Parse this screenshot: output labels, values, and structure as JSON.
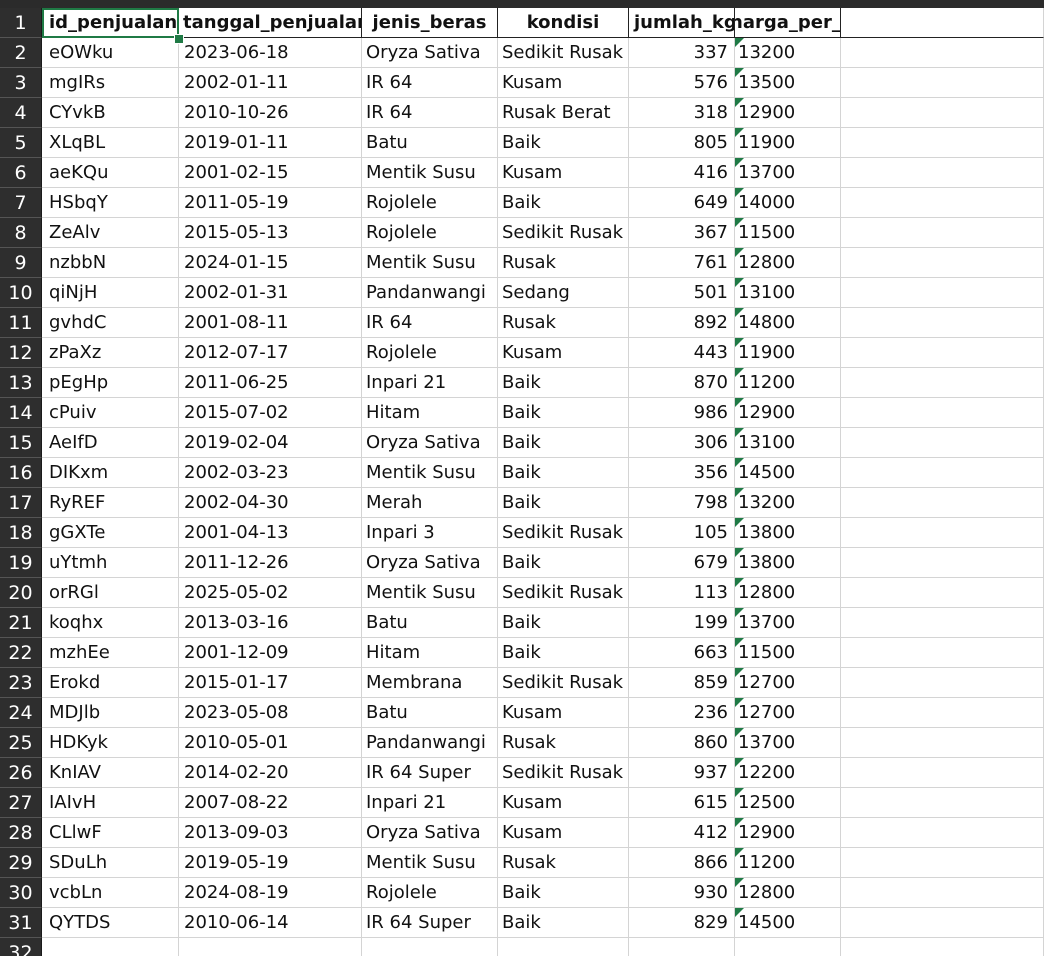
{
  "sheet": {
    "headers": [
      "id_penjualan",
      "tanggal_penjualan",
      "jenis_beras",
      "kondisi",
      "jumlah_kg",
      "harga_per_kg"
    ],
    "header_row_number": "1",
    "rows": [
      [
        "2",
        "eOWku",
        "2023-06-18",
        "Oryza Sativa",
        "Sedikit Rusak",
        "337",
        "13200"
      ],
      [
        "3",
        "mgIRs",
        "2002-01-11",
        "IR 64",
        "Kusam",
        "576",
        "13500"
      ],
      [
        "4",
        "CYvkB",
        "2010-10-26",
        "IR 64",
        "Rusak Berat",
        "318",
        "12900"
      ],
      [
        "5",
        "XLqBL",
        "2019-01-11",
        "Batu",
        "Baik",
        "805",
        "11900"
      ],
      [
        "6",
        "aeKQu",
        "2001-02-15",
        "Mentik Susu",
        "Kusam",
        "416",
        "13700"
      ],
      [
        "7",
        "HSbqY",
        "2011-05-19",
        "Rojolele",
        "Baik",
        "649",
        "14000"
      ],
      [
        "8",
        "ZeAlv",
        "2015-05-13",
        "Rojolele",
        "Sedikit Rusak",
        "367",
        "11500"
      ],
      [
        "9",
        "nzbbN",
        "2024-01-15",
        "Mentik Susu",
        "Rusak",
        "761",
        "12800"
      ],
      [
        "10",
        "qiNjH",
        "2002-01-31",
        "Pandanwangi",
        "Sedang",
        "501",
        "13100"
      ],
      [
        "11",
        "gvhdC",
        "2001-08-11",
        "IR 64",
        "Rusak",
        "892",
        "14800"
      ],
      [
        "12",
        "zPaXz",
        "2012-07-17",
        "Rojolele",
        "Kusam",
        "443",
        "11900"
      ],
      [
        "13",
        "pEgHp",
        "2011-06-25",
        "Inpari 21",
        "Baik",
        "870",
        "11200"
      ],
      [
        "14",
        "cPuiv",
        "2015-07-02",
        "Hitam",
        "Baik",
        "986",
        "12900"
      ],
      [
        "15",
        "AeIfD",
        "2019-02-04",
        "Oryza Sativa",
        "Baik",
        "306",
        "13100"
      ],
      [
        "16",
        "DIKxm",
        "2002-03-23",
        "Mentik Susu",
        "Baik",
        "356",
        "14500"
      ],
      [
        "17",
        "RyREF",
        "2002-04-30",
        "Merah",
        "Baik",
        "798",
        "13200"
      ],
      [
        "18",
        "gGXTe",
        "2001-04-13",
        "Inpari 3",
        "Sedikit Rusak",
        "105",
        "13800"
      ],
      [
        "19",
        "uYtmh",
        "2011-12-26",
        "Oryza Sativa",
        "Baik",
        "679",
        "13800"
      ],
      [
        "20",
        "orRGl",
        "2025-05-02",
        "Mentik Susu",
        "Sedikit Rusak",
        "113",
        "12800"
      ],
      [
        "21",
        "koqhx",
        "2013-03-16",
        "Batu",
        "Baik",
        "199",
        "13700"
      ],
      [
        "22",
        "mzhEe",
        "2001-12-09",
        "Hitam",
        "Baik",
        "663",
        "11500"
      ],
      [
        "23",
        "Erokd",
        "2015-01-17",
        "Membrana",
        "Sedikit Rusak",
        "859",
        "12700"
      ],
      [
        "24",
        "MDJlb",
        "2023-05-08",
        "Batu",
        "Kusam",
        "236",
        "12700"
      ],
      [
        "25",
        "HDKyk",
        "2010-05-01",
        "Pandanwangi",
        "Rusak",
        "860",
        "13700"
      ],
      [
        "26",
        "KnIAV",
        "2014-02-20",
        "IR 64 Super",
        "Sedikit Rusak",
        "937",
        "12200"
      ],
      [
        "27",
        "IAIvH",
        "2007-08-22",
        "Inpari 21",
        "Kusam",
        "615",
        "12500"
      ],
      [
        "28",
        "CLlwF",
        "2013-09-03",
        "Oryza Sativa",
        "Kusam",
        "412",
        "12900"
      ],
      [
        "29",
        "SDuLh",
        "2019-05-19",
        "Mentik Susu",
        "Rusak",
        "866",
        "11200"
      ],
      [
        "30",
        "vcbLn",
        "2024-08-19",
        "Rojolele",
        "Baik",
        "930",
        "12800"
      ],
      [
        "31",
        "QYTDS",
        "2010-06-14",
        "IR 64 Super",
        "Baik",
        "829",
        "14500"
      ]
    ],
    "last_row_number": "32"
  },
  "colors": {
    "row_header_bg": "#2e2e2e",
    "selection": "#1f7a45",
    "gridline": "#d4d4d4"
  },
  "icons": {
    "number_as_text_indicator": "green-triangle-icon"
  }
}
